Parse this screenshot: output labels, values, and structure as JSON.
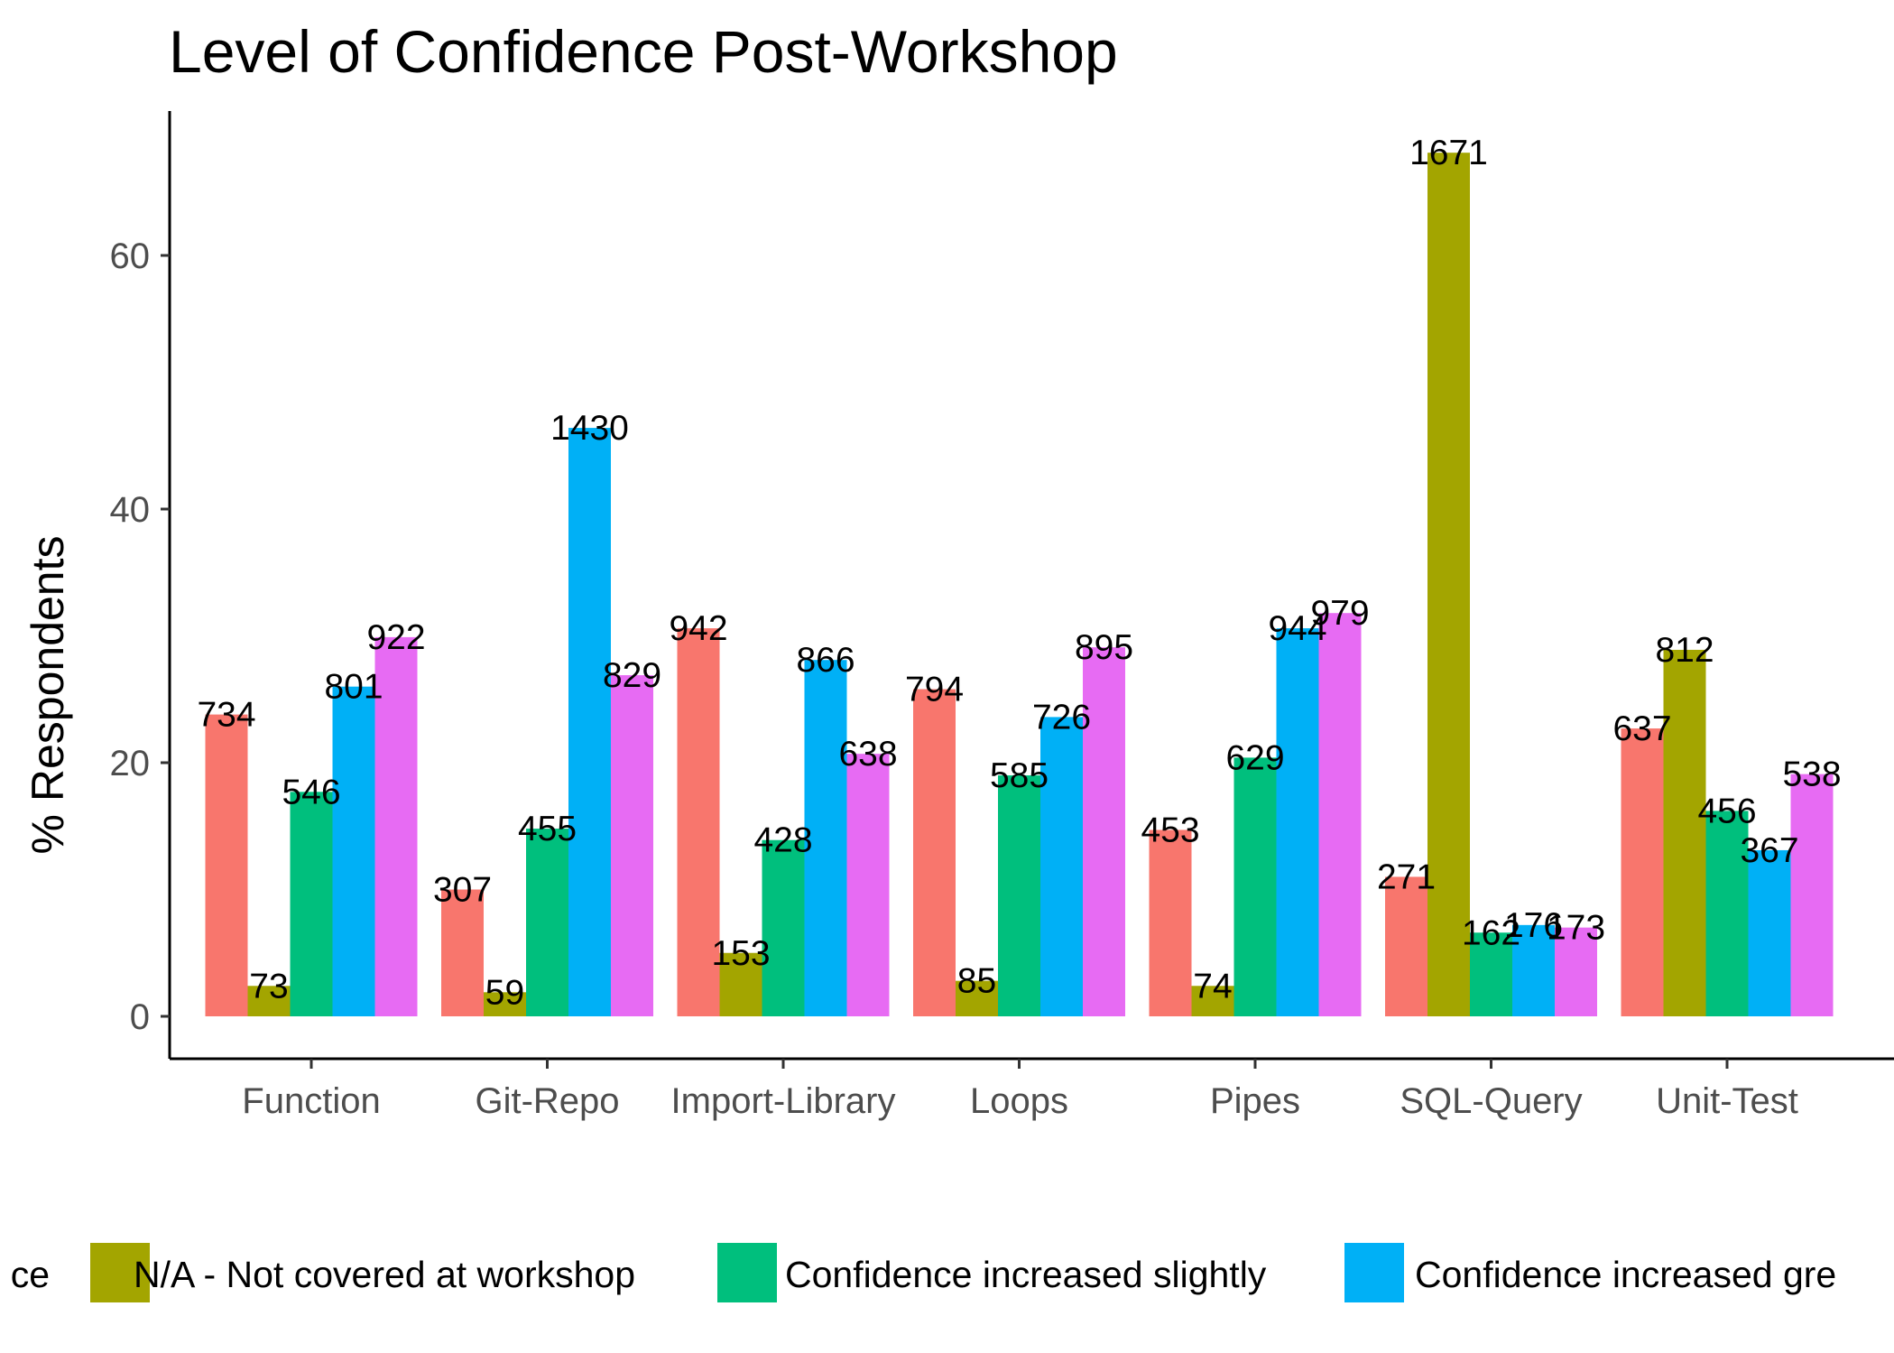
{
  "chart_data": {
    "type": "bar",
    "title": "Level of Confidence Post-Workshop",
    "xlabel": "",
    "ylabel": "% Respondents",
    "ylim": [
      -3.2,
      71.5
    ],
    "yticks": [
      0,
      20,
      40,
      60
    ],
    "grid": false,
    "legend_position": "bottom",
    "categories": [
      "Function",
      "Git-Repo",
      "Import-Library",
      "Loops",
      "Pipes",
      "SQL-Query",
      "Unit-Test"
    ],
    "series": [
      {
        "color": "#F8766D",
        "values": [
          23.8,
          10.0,
          30.6,
          25.8,
          14.7,
          11.0,
          22.7
        ],
        "labels": [
          "734",
          "307",
          "942",
          "794",
          "453",
          "271",
          "637"
        ]
      },
      {
        "name": "N/A - Not covered at workshop",
        "color": "#A3A500",
        "values": [
          2.4,
          1.9,
          5.0,
          2.8,
          2.4,
          68.1,
          28.9
        ],
        "labels": [
          "73",
          "59",
          "153",
          "85",
          "74",
          "1671",
          "812"
        ]
      },
      {
        "name": "Confidence increased slightly",
        "color": "#00BF7D",
        "values": [
          17.7,
          14.8,
          13.9,
          19.0,
          20.4,
          6.6,
          16.2
        ],
        "labels": [
          "546",
          "455",
          "428",
          "585",
          "629",
          "162",
          "456"
        ]
      },
      {
        "name": "Confidence increased gre",
        "color": "#00B0F6",
        "values": [
          26.0,
          46.4,
          28.1,
          23.6,
          30.6,
          7.2,
          13.1
        ],
        "labels": [
          "801",
          "1430",
          "866",
          "726",
          "944",
          "176",
          "367"
        ]
      },
      {
        "color": "#E76BF3",
        "values": [
          29.9,
          26.9,
          20.7,
          29.1,
          31.8,
          7.0,
          19.1
        ],
        "labels": [
          "922",
          "829",
          "638",
          "895",
          "979",
          "173",
          "538"
        ]
      }
    ],
    "legend_items": [
      {
        "label": "ce",
        "color": "#F8766D",
        "swatch_visible": false
      },
      {
        "label": "N/A - Not covered at workshop",
        "color": "#A3A500",
        "swatch_visible": true
      },
      {
        "label": "Confidence increased slightly",
        "color": "#00BF7D",
        "swatch_visible": true
      },
      {
        "label": "Confidence increased gre",
        "color": "#00B0F6",
        "swatch_visible": true
      }
    ]
  }
}
